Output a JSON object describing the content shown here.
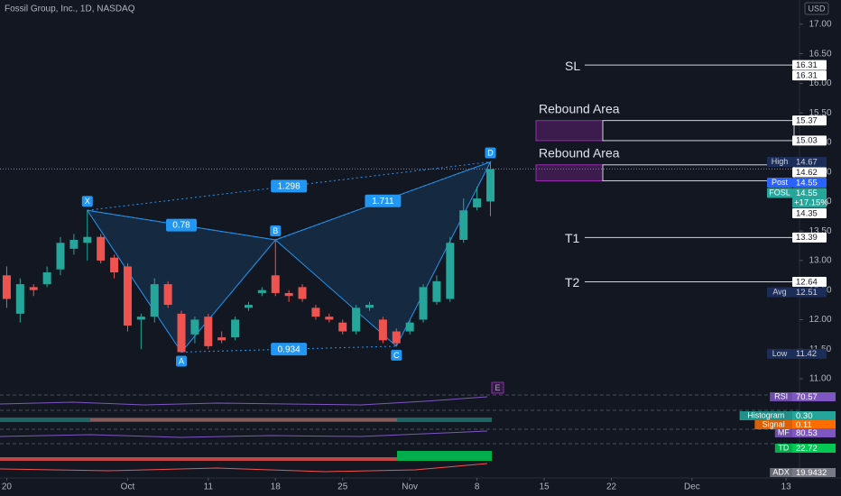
{
  "chart_data": {
    "type": "candlestick",
    "title": "Fossil Group, Inc., 1D, NASDAQ",
    "currency": "USD",
    "x": [
      0,
      1,
      2,
      3,
      4,
      5,
      6,
      7,
      8,
      9,
      10,
      11,
      12,
      13,
      14,
      15,
      16,
      17,
      18,
      19,
      20,
      21,
      22,
      23,
      24,
      25,
      26,
      27,
      28,
      29,
      30,
      31,
      32,
      33,
      34,
      35,
      36
    ],
    "open": [
      12.75,
      12.1,
      12.55,
      12.6,
      12.85,
      13.2,
      13.3,
      13.4,
      13.05,
      12.9,
      12.0,
      12.05,
      12.6,
      12.1,
      11.75,
      12.05,
      11.7,
      11.7,
      12.2,
      12.45,
      12.75,
      12.45,
      12.55,
      12.2,
      12.05,
      11.95,
      11.8,
      12.2,
      12.0,
      11.8,
      11.8,
      12.0,
      12.3,
      12.35,
      13.35,
      13.9,
      14.0
    ],
    "high": [
      12.9,
      12.7,
      12.6,
      12.9,
      13.4,
      13.45,
      13.85,
      13.45,
      13.1,
      12.95,
      12.1,
      12.7,
      12.65,
      12.15,
      12.05,
      12.1,
      11.8,
      12.05,
      12.3,
      12.55,
      13.35,
      12.5,
      12.6,
      12.25,
      12.1,
      12.0,
      12.25,
      12.3,
      12.05,
      11.85,
      12.0,
      12.6,
      12.75,
      13.4,
      14.05,
      14.25,
      14.67
    ],
    "low": [
      12.2,
      11.95,
      12.4,
      12.55,
      12.75,
      13.1,
      13.0,
      12.95,
      12.7,
      11.8,
      11.5,
      11.95,
      12.2,
      11.45,
      11.6,
      11.5,
      11.6,
      11.65,
      12.15,
      12.4,
      12.4,
      12.3,
      12.3,
      12.0,
      11.95,
      11.75,
      11.75,
      12.15,
      11.6,
      11.55,
      11.75,
      11.95,
      12.25,
      12.3,
      13.3,
      13.85,
      13.75
    ],
    "close": [
      12.35,
      12.6,
      12.5,
      12.8,
      13.3,
      13.35,
      13.4,
      13.0,
      12.8,
      11.9,
      12.05,
      12.6,
      12.25,
      11.45,
      12.0,
      11.55,
      11.65,
      12.0,
      12.25,
      12.5,
      12.45,
      12.4,
      12.35,
      12.05,
      12.0,
      11.8,
      12.2,
      12.25,
      11.65,
      11.6,
      11.95,
      12.55,
      12.65,
      13.3,
      13.85,
      14.05,
      14.55
    ],
    "up_color": "#26a69a",
    "down_color": "#ef5350",
    "xlim": [
      -0.5,
      59
    ],
    "xticks": [
      {
        "value": 0,
        "label": "20"
      },
      {
        "value": 9,
        "label": "Oct"
      },
      {
        "value": 15,
        "label": "11"
      },
      {
        "value": 20,
        "label": "18"
      },
      {
        "value": 25,
        "label": "25"
      },
      {
        "value": 30,
        "label": "Nov"
      },
      {
        "value": 35,
        "label": "8"
      },
      {
        "value": 40,
        "label": "15"
      },
      {
        "value": 45,
        "label": "22"
      },
      {
        "value": 51,
        "label": "Dec"
      },
      {
        "value": 58,
        "label": "13"
      }
    ],
    "ylim": [
      10.77,
      17.41
    ],
    "yticks": [
      {
        "value": 11,
        "label": "11.00"
      },
      {
        "value": 11.5,
        "label": "11.50"
      },
      {
        "value": 12,
        "label": "12.00"
      },
      {
        "value": 12.5,
        "label": "12.50"
      },
      {
        "value": 13,
        "label": "13.00"
      },
      {
        "value": 13.5,
        "label": "13.50"
      },
      {
        "value": 14,
        "label": "14.00"
      },
      {
        "value": 14.5,
        "label": "14.50"
      },
      {
        "value": 15,
        "label": "15.00"
      },
      {
        "value": 15.5,
        "label": "15.50"
      },
      {
        "value": 16,
        "label": "16.00"
      },
      {
        "value": 16.5,
        "label": "16.50"
      },
      {
        "value": 17,
        "label": "17.00"
      }
    ],
    "last_price_line": 14.55,
    "pattern": {
      "points": [
        {
          "name": "X",
          "x": 6,
          "y": 13.85
        },
        {
          "name": "A",
          "x": 13,
          "y": 11.45
        },
        {
          "name": "B",
          "x": 20,
          "y": 13.35
        },
        {
          "name": "C",
          "x": 29,
          "y": 11.55
        },
        {
          "name": "D",
          "x": 36,
          "y": 14.67
        }
      ],
      "ratios": [
        "0.78",
        "1.298",
        "1.711",
        "0.934"
      ],
      "color": "#2196f3"
    },
    "levels": [
      {
        "name": "SL",
        "value": 16.31
      },
      {
        "name": "T1",
        "value": 13.39
      },
      {
        "name": "T2",
        "value": 12.64
      }
    ],
    "zones": [
      {
        "name": "Rebound Area",
        "from": 15.03,
        "to": 15.37
      },
      {
        "name": "Rebound Area",
        "from": 14.35,
        "to": 14.62
      }
    ],
    "price_tags": [
      {
        "value": 16.31,
        "label": "16.31",
        "color": "#ffffff",
        "text_color": "#131722"
      },
      {
        "value": 16.31,
        "label": "16.31",
        "color": "#ffffff",
        "text_color": "#131722"
      },
      {
        "value": 15.37,
        "label": "15.37",
        "color": "#ffffff",
        "text_color": "#131722"
      },
      {
        "value": 15.03,
        "label": "15.03",
        "color": "#ffffff",
        "text_color": "#131722"
      },
      {
        "name": "High",
        "value": 14.67,
        "label": "14.67",
        "color": "#1c2d5a",
        "text_color": "#d1d4dc"
      },
      {
        "value": 14.62,
        "label": "14.62",
        "color": "#ffffff",
        "text_color": "#131722"
      },
      {
        "name": "Post",
        "value": 14.55,
        "label": "14.55",
        "color": "#2962ff",
        "text_color": "#ffffff"
      },
      {
        "name": "FOSL",
        "value": 14.55,
        "label": "14.55",
        "change": "+17.15%",
        "color": "#26a69a",
        "text_color": "#ffffff"
      },
      {
        "value": 14.35,
        "label": "14.35",
        "color": "#ffffff",
        "text_color": "#131722"
      },
      {
        "value": 13.39,
        "label": "13.39",
        "color": "#ffffff",
        "text_color": "#131722"
      },
      {
        "value": 12.64,
        "label": "12.64",
        "color": "#ffffff",
        "text_color": "#131722"
      },
      {
        "name": "Avg",
        "value": 12.51,
        "label": "12.51",
        "color": "#1c2d5a",
        "text_color": "#d1d4dc"
      },
      {
        "name": "Low",
        "value": 11.42,
        "label": "11.42",
        "color": "#1c2d5a",
        "text_color": "#d1d4dc"
      }
    ],
    "event_marker": "E",
    "indicators": [
      {
        "name": "RSI",
        "label": "70.57",
        "color": "#7e57c2"
      },
      {
        "name": "Histogram",
        "label": "0.30",
        "color": "#26a69a"
      },
      {
        "name": "Signal",
        "label": "0.11",
        "color": "#ff6d00"
      },
      {
        "name": "MF",
        "label": "80.53",
        "color": "#7e57c2"
      },
      {
        "name": "TD",
        "label": "22.72",
        "color": "#00c853"
      },
      {
        "name": "ADX",
        "label": "19.9432",
        "color": "#787b86"
      }
    ]
  }
}
